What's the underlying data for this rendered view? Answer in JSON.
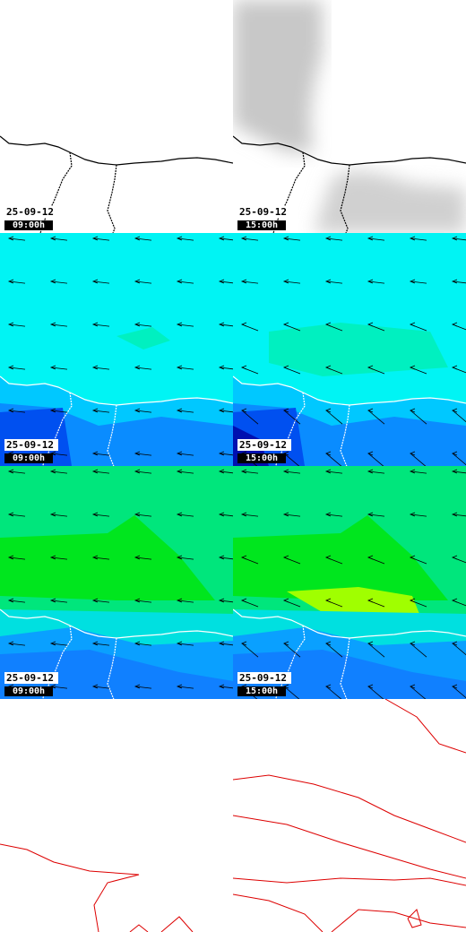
{
  "panels": [
    {
      "date": "25-09-12",
      "time": "09:00h"
    },
    {
      "date": "25-09-12",
      "time": "15:00h"
    },
    {
      "date": "25-09-12",
      "time": "09:00h"
    },
    {
      "date": "25-09-12",
      "time": "15:00h"
    },
    {
      "date": "25-09-12",
      "time": "09:00h"
    },
    {
      "date": "25-09-12",
      "time": "15:00h"
    }
  ]
}
